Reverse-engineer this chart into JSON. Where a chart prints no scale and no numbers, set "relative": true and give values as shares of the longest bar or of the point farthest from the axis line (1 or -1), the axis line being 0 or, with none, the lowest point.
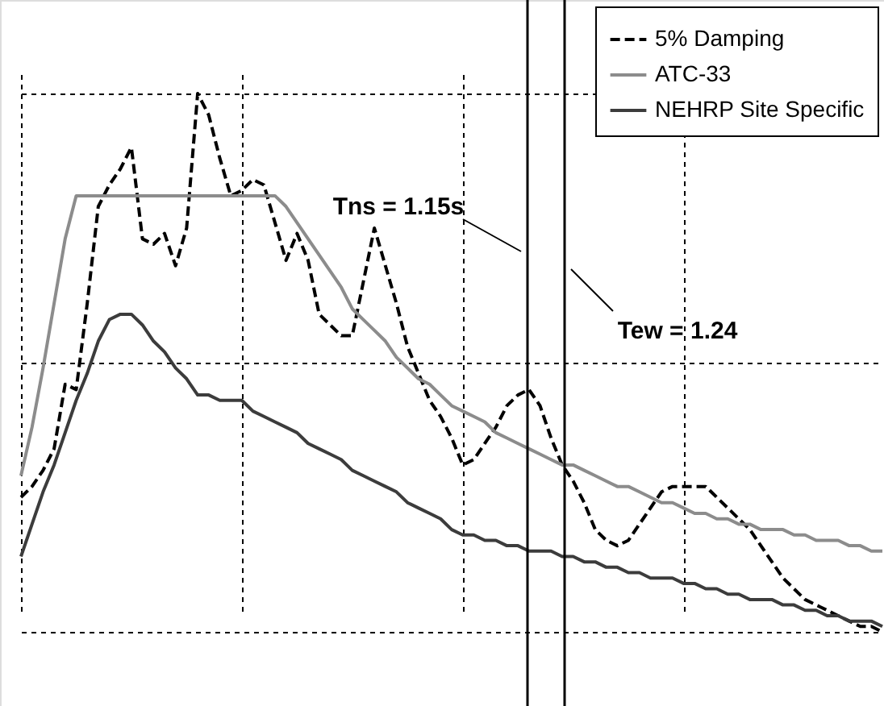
{
  "chart_data": {
    "type": "line",
    "relative": true,
    "categories": [
      null,
      null,
      null,
      null,
      null,
      null,
      null,
      null,
      null,
      null,
      null,
      null,
      null,
      null,
      null,
      null,
      null,
      null,
      null,
      null,
      null,
      null,
      null,
      null,
      null,
      null,
      null,
      null,
      null,
      null,
      null,
      null,
      null,
      null,
      null,
      null,
      null,
      null,
      null,
      null,
      null,
      null,
      null,
      null,
      null,
      null,
      null,
      null,
      null,
      null,
      null,
      null,
      null,
      null,
      null,
      null,
      null,
      null,
      null,
      null,
      null,
      null,
      null,
      null,
      null,
      null,
      null,
      null,
      null,
      null,
      null,
      null,
      null,
      null,
      null,
      null,
      null,
      null,
      null
    ],
    "grid": true,
    "legend": "top right",
    "series": [
      {
        "name": "5% Damping",
        "color": "#000000",
        "line_style": "dashed",
        "values": [
          0.25,
          0.27,
          0.3,
          0.34,
          0.46,
          0.45,
          0.61,
          0.79,
          0.83,
          0.86,
          0.9,
          0.73,
          0.72,
          0.74,
          0.68,
          0.75,
          1.0,
          0.96,
          0.88,
          0.81,
          0.82,
          0.84,
          0.83,
          0.76,
          0.69,
          0.74,
          0.69,
          0.59,
          0.57,
          0.55,
          0.55,
          0.65,
          0.75,
          0.68,
          0.61,
          0.53,
          0.48,
          0.43,
          0.4,
          0.36,
          0.31,
          0.32,
          0.35,
          0.38,
          0.42,
          0.44,
          0.45,
          0.42,
          0.36,
          0.31,
          0.28,
          0.24,
          0.19,
          0.17,
          0.16,
          0.17,
          0.2,
          0.23,
          0.26,
          0.27,
          0.27,
          0.27,
          0.27,
          0.25,
          0.23,
          0.21,
          0.19,
          0.16,
          0.13,
          0.1,
          0.08,
          0.06,
          0.05,
          0.04,
          0.03,
          0.02,
          0.01,
          0.01,
          0.0
        ]
      },
      {
        "name": "ATC-33",
        "color": "#8c8c8c",
        "line_style": "solid",
        "values": [
          0.29,
          0.38,
          0.49,
          0.61,
          0.73,
          0.81,
          0.81,
          0.81,
          0.81,
          0.81,
          0.81,
          0.81,
          0.81,
          0.81,
          0.81,
          0.81,
          0.81,
          0.81,
          0.81,
          0.81,
          0.81,
          0.81,
          0.81,
          0.81,
          0.79,
          0.76,
          0.73,
          0.7,
          0.67,
          0.64,
          0.6,
          0.58,
          0.56,
          0.54,
          0.51,
          0.49,
          0.47,
          0.46,
          0.44,
          0.42,
          0.41,
          0.4,
          0.39,
          0.37,
          0.36,
          0.35,
          0.34,
          0.33,
          0.32,
          0.31,
          0.31,
          0.3,
          0.29,
          0.28,
          0.27,
          0.27,
          0.26,
          0.25,
          0.24,
          0.24,
          0.23,
          0.22,
          0.22,
          0.21,
          0.21,
          0.2,
          0.2,
          0.19,
          0.19,
          0.19,
          0.18,
          0.18,
          0.17,
          0.17,
          0.17,
          0.16,
          0.16,
          0.15,
          0.15
        ]
      },
      {
        "name": "NEHRP Site Specific",
        "color": "#3c3c3c",
        "line_style": "solid",
        "values": [
          0.14,
          0.2,
          0.26,
          0.31,
          0.37,
          0.43,
          0.48,
          0.54,
          0.58,
          0.59,
          0.59,
          0.57,
          0.54,
          0.52,
          0.49,
          0.47,
          0.44,
          0.44,
          0.43,
          0.43,
          0.43,
          0.41,
          0.4,
          0.39,
          0.38,
          0.37,
          0.35,
          0.34,
          0.33,
          0.32,
          0.3,
          0.29,
          0.28,
          0.27,
          0.26,
          0.24,
          0.23,
          0.22,
          0.21,
          0.19,
          0.18,
          0.18,
          0.17,
          0.17,
          0.16,
          0.16,
          0.15,
          0.15,
          0.15,
          0.14,
          0.14,
          0.13,
          0.13,
          0.12,
          0.12,
          0.11,
          0.11,
          0.1,
          0.1,
          0.1,
          0.09,
          0.09,
          0.08,
          0.08,
          0.07,
          0.07,
          0.06,
          0.06,
          0.06,
          0.05,
          0.05,
          0.04,
          0.04,
          0.03,
          0.03,
          0.02,
          0.02,
          0.02,
          0.01
        ]
      }
    ],
    "annotations": [
      "Tns = 1.15s",
      "Tew = 1.24"
    ]
  }
}
